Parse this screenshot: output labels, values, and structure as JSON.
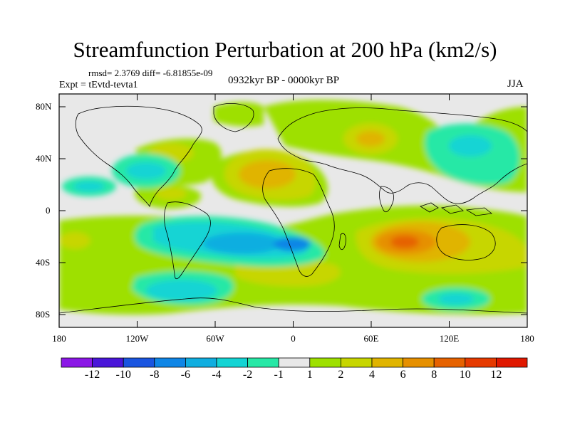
{
  "title": "Streamfunction Perturbation at 200 hPa (km2/s)",
  "stats": "rmsd= 2.3769 diff= -6.81855e-09",
  "experiment": "Expt = tEvtd-tevta1",
  "period": "0932kyr BP - 0000kyr BP",
  "season": "JJA",
  "map": {
    "projection": "cylindrical equidistant",
    "lon_ticks": [
      "180",
      "120W",
      "60W",
      "0",
      "60E",
      "120E",
      "180"
    ],
    "lat_ticks": [
      "80N",
      "40N",
      "0",
      "40S",
      "80S"
    ],
    "background_color": "#e8e8e8",
    "coastline_color": "#000000"
  },
  "colorbar": {
    "labels": [
      "-12",
      "-10",
      "-8",
      "-6",
      "-4",
      "-2",
      "-1",
      "1",
      "2",
      "4",
      "6",
      "8",
      "10",
      "12"
    ],
    "colors": [
      "#8b17e6",
      "#4a16d9",
      "#1a55e0",
      "#0f86e6",
      "#10aee0",
      "#14d4d4",
      "#27e8a6",
      "#e8e8e8",
      "#9ee000",
      "#c7d600",
      "#e0b400",
      "#e69000",
      "#e66200",
      "#e63a00",
      "#e01800"
    ]
  }
}
